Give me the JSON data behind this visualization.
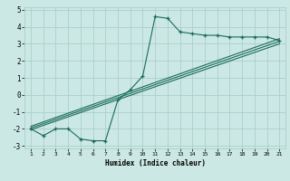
{
  "title": "",
  "xlabel": "Humidex (Indice chaleur)",
  "bg_color": "#cce8e4",
  "grid_color": "#aacfcc",
  "line_color": "#1a6b5a",
  "x_min": 1,
  "x_max": 21,
  "y_min": -3,
  "y_max": 5,
  "x_ticks": [
    1,
    2,
    3,
    4,
    5,
    6,
    7,
    8,
    9,
    10,
    11,
    12,
    13,
    14,
    15,
    16,
    17,
    18,
    19,
    20,
    21
  ],
  "y_ticks": [
    -3,
    -2,
    -1,
    0,
    1,
    2,
    3,
    4,
    5
  ],
  "jagged_x": [
    1,
    2,
    3,
    4,
    5,
    6,
    7,
    8,
    9,
    10,
    11,
    12,
    13,
    14,
    15,
    16,
    17,
    18,
    19,
    20,
    21
  ],
  "jagged_y": [
    -2.0,
    -2.4,
    -2.0,
    -2.0,
    -2.6,
    -2.7,
    -2.7,
    -0.3,
    0.3,
    1.1,
    4.6,
    4.5,
    3.7,
    3.6,
    3.5,
    3.5,
    3.4,
    3.4,
    3.4,
    3.4,
    3.2
  ],
  "line1_x": [
    1,
    21
  ],
  "line1_y": [
    -1.85,
    3.3
  ],
  "line2_x": [
    1,
    21
  ],
  "line2_y": [
    -1.95,
    3.15
  ],
  "line3_x": [
    1,
    21
  ],
  "line3_y": [
    -2.05,
    3.0
  ]
}
